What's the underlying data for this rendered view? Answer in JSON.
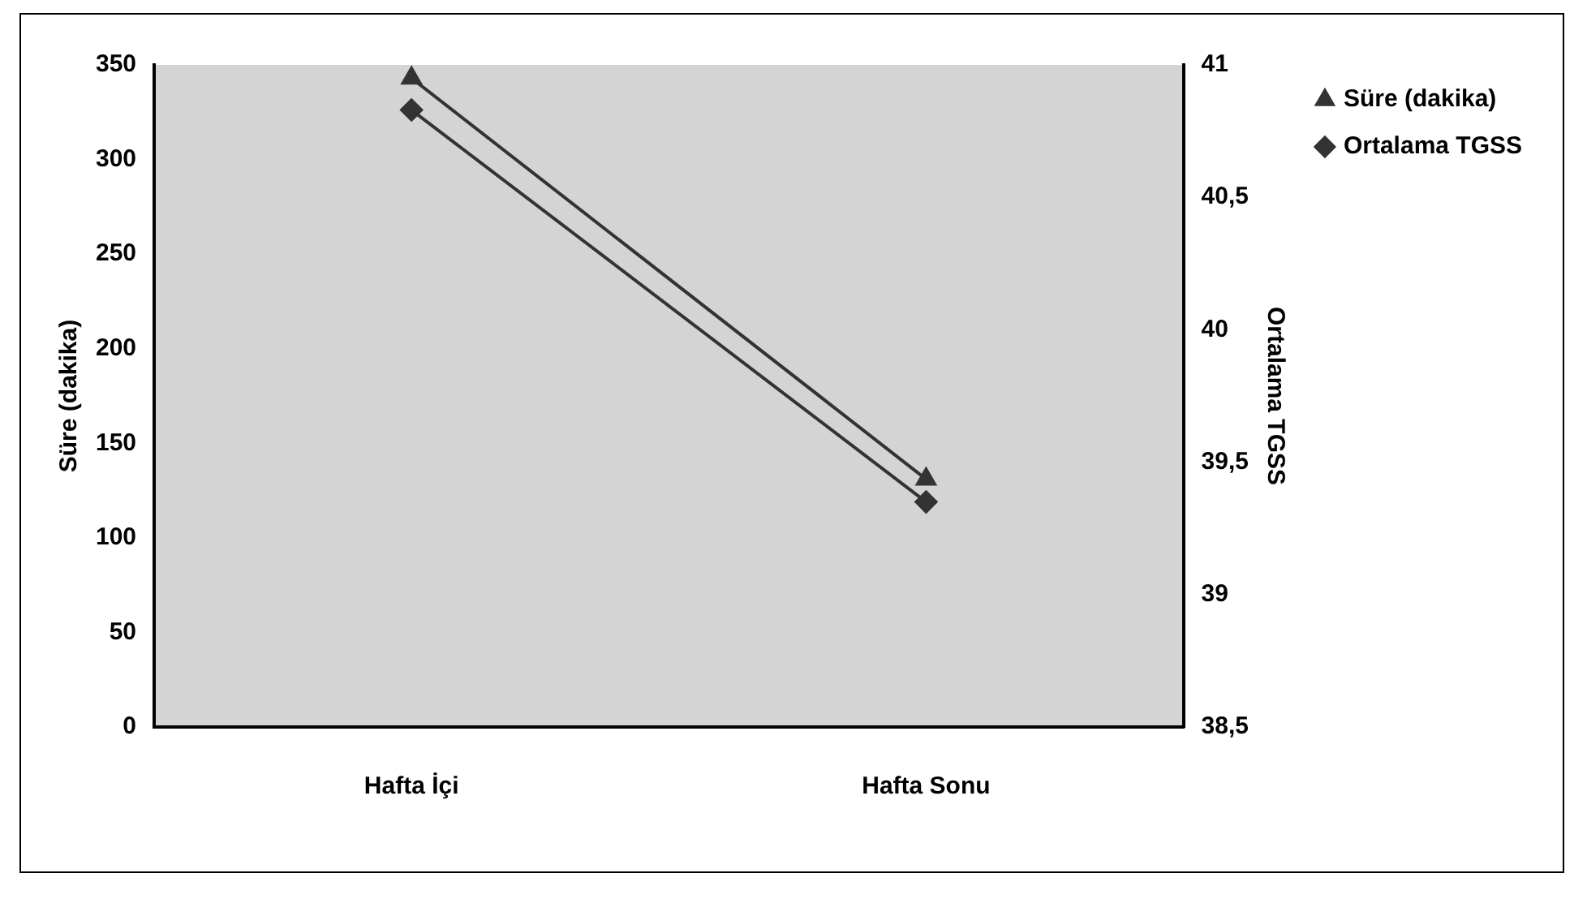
{
  "chart_data": {
    "type": "line",
    "categories": [
      "Hafta İçi",
      "Hafta Sonu"
    ],
    "series": [
      {
        "name": "Süre (dakika)",
        "color": "#333333",
        "values": [
          343,
          131
        ],
        "marker": "triangle"
      },
      {
        "name": "Ortalama TGSS",
        "color": "#333333",
        "values": [
          40.83,
          39.35
        ],
        "marker": "diamond",
        "axis": "y2"
      }
    ],
    "ylabel": "Süre (dakika)",
    "y2label": "Ortalama TGSS",
    "ylim": [
      0,
      350
    ],
    "yticks": [
      0,
      50,
      100,
      150,
      200,
      250,
      300,
      350
    ],
    "y2lim": [
      38.5,
      41
    ],
    "y2ticks": [
      {
        "value": 38.5,
        "label": "38,5"
      },
      39,
      {
        "value": 39.5,
        "label": "39,5"
      },
      40,
      {
        "value": 40.5,
        "label": "40,5"
      },
      41
    ],
    "legend": "right",
    "grid": false
  }
}
